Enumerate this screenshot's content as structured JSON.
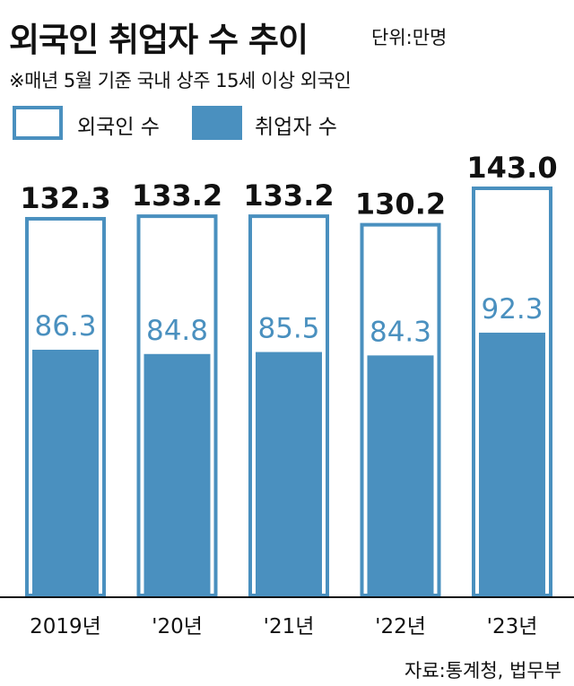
{
  "header": {
    "title": "외국인 취업자 수 추이",
    "unit": "단위:만명",
    "note": "※매년 5월 기준 국내 상주 15세 이상 외국인"
  },
  "source": "자료:통계청, 법무부",
  "colors": {
    "outline": "#4a90bf",
    "fill": "#4a90bf",
    "value_label_inner": "#4a90bf",
    "value_label_outer": "#111111",
    "axis": "#111111"
  },
  "chart_data": {
    "type": "bar",
    "categories": [
      "2019년",
      "'20년",
      "'21년",
      "'22년",
      "'23년"
    ],
    "series": [
      {
        "name": "외국인 수",
        "values": [
          132.3,
          133.2,
          133.2,
          130.2,
          143.0
        ]
      },
      {
        "name": "취업자 수",
        "values": [
          86.3,
          84.8,
          85.5,
          84.3,
          92.3
        ]
      }
    ],
    "value_labels": {
      "foreigners": [
        "132.3",
        "133.2",
        "133.2",
        "130.2",
        "143.0"
      ],
      "employed": [
        "86.3",
        "84.8",
        "85.5",
        "84.3",
        "92.3"
      ]
    },
    "title": "외국인 취업자 수 추이",
    "xlabel": "",
    "ylabel": "",
    "legend": "top-left",
    "grid": false
  }
}
